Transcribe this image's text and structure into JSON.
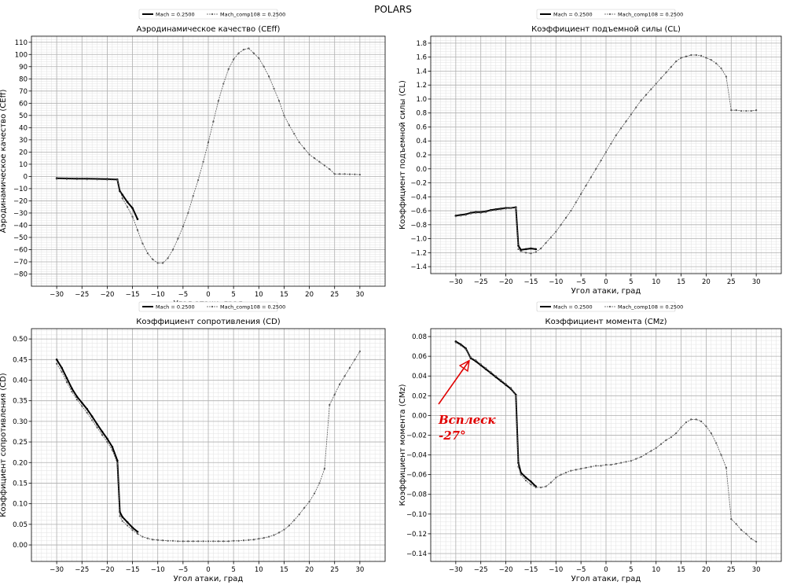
{
  "figure": {
    "suptitle": "POLARS",
    "colors": {
      "major_grid": "#b0b0b0",
      "minor_grid": "#e2e2e2",
      "series_main": "#000000",
      "series_comp": "#555555",
      "annotation": "#e00000"
    }
  },
  "chart_data": [
    {
      "type": "line",
      "title": "Аэродинамическое качество (CEff)",
      "xlabel": "Угол атаки, град",
      "ylabel": "Аэродинамическое качество (CEff)",
      "xlim": [
        -35,
        35
      ],
      "ylim": [
        -90,
        115
      ],
      "xticks": [
        -30,
        -25,
        -20,
        -15,
        -10,
        -5,
        0,
        5,
        10,
        15,
        20,
        25,
        30
      ],
      "yticks": [
        -80,
        -70,
        -60,
        -50,
        -40,
        -30,
        -20,
        -10,
        0,
        10,
        20,
        30,
        40,
        50,
        60,
        70,
        80,
        90,
        100,
        110
      ],
      "grid": true,
      "legend_position": "top-center",
      "series": [
        {
          "name": "Mach = 0.2500",
          "style": "thick",
          "x": [
            -30,
            -28,
            -26,
            -24,
            -22,
            -20,
            -18,
            -17.5,
            -17,
            -16,
            -15,
            -14
          ],
          "y": [
            -1.5,
            -1.7,
            -1.8,
            -1.9,
            -2,
            -2.2,
            -2.5,
            -12,
            -15,
            -21,
            -26,
            -35
          ]
        },
        {
          "name": "Mach_comp108 = 0.2500",
          "style": "thin",
          "x": [
            -30,
            -28,
            -26,
            -24,
            -22,
            -20,
            -18,
            -17,
            -16,
            -15,
            -14,
            -13,
            -12,
            -11,
            -10,
            -9,
            -8,
            -7,
            -6,
            -5,
            -4,
            -3,
            -2,
            -1,
            0,
            1,
            2,
            3,
            4,
            5,
            6,
            7,
            8,
            9,
            10,
            11,
            12,
            13,
            14,
            15,
            16,
            17,
            18,
            19,
            20,
            21,
            22,
            23,
            24,
            25,
            26,
            27,
            28,
            29,
            30
          ],
          "y": [
            -2,
            -2.2,
            -2.3,
            -2.4,
            -2.5,
            -2.7,
            -3,
            -18,
            -25,
            -33,
            -44,
            -55,
            -63,
            -68,
            -71,
            -71,
            -67,
            -60,
            -51,
            -41,
            -30,
            -16,
            -3,
            12,
            28,
            45,
            62,
            76,
            88,
            96,
            101,
            104,
            105,
            101,
            97,
            90,
            82,
            72,
            62,
            50,
            42,
            35,
            28,
            23,
            18,
            15,
            12,
            9,
            6,
            2,
            2,
            2,
            1.8,
            1.7,
            1.5
          ]
        }
      ]
    },
    {
      "type": "line",
      "title": "Коэффициент подъемной силы (CL)",
      "xlabel": "Угол атаки, град",
      "ylabel": "Коэффициент подъемной силы (CL)",
      "xlim": [
        -35,
        35
      ],
      "ylim": [
        -1.5,
        1.9
      ],
      "xticks": [
        -30,
        -25,
        -20,
        -15,
        -10,
        -5,
        0,
        5,
        10,
        15,
        20,
        25,
        30
      ],
      "yticks": [
        -1.4,
        -1.2,
        -1.0,
        -0.8,
        -0.6,
        -0.4,
        -0.2,
        0.0,
        0.2,
        0.4,
        0.6,
        0.8,
        1.0,
        1.2,
        1.4,
        1.6,
        1.8
      ],
      "grid": true,
      "legend_position": "top-center",
      "series": [
        {
          "name": "Mach = 0.2500",
          "style": "thick",
          "x": [
            -30,
            -29,
            -28,
            -27,
            -26,
            -25,
            -24,
            -23,
            -22,
            -21,
            -20,
            -19,
            -18,
            -17.5,
            -17,
            -16,
            -15,
            -14
          ],
          "y": [
            -0.67,
            -0.66,
            -0.65,
            -0.63,
            -0.62,
            -0.62,
            -0.61,
            -0.59,
            -0.58,
            -0.57,
            -0.56,
            -0.56,
            -0.55,
            -1.1,
            -1.16,
            -1.15,
            -1.14,
            -1.15
          ]
        },
        {
          "name": "Mach_comp108 = 0.2500",
          "style": "thin",
          "x": [
            -30,
            -29,
            -28,
            -27,
            -26,
            -25,
            -24,
            -23,
            -22,
            -21,
            -20,
            -19,
            -18,
            -17.5,
            -17,
            -16,
            -15,
            -14,
            -13,
            -12,
            -11,
            -10,
            -9,
            -8,
            -7,
            -6,
            -5,
            -4,
            -3,
            -2,
            -1,
            0,
            1,
            2,
            3,
            4,
            5,
            6,
            7,
            8,
            9,
            10,
            11,
            12,
            13,
            14,
            15,
            16,
            17,
            18,
            19,
            20,
            21,
            22,
            23,
            24,
            25,
            26,
            27,
            28,
            29,
            30
          ],
          "y": [
            -0.68,
            -0.67,
            -0.66,
            -0.64,
            -0.63,
            -0.63,
            -0.62,
            -0.6,
            -0.59,
            -0.58,
            -0.57,
            -0.56,
            -0.56,
            -1.15,
            -1.18,
            -1.2,
            -1.21,
            -1.19,
            -1.14,
            -1.06,
            -0.98,
            -0.9,
            -0.8,
            -0.7,
            -0.6,
            -0.48,
            -0.36,
            -0.24,
            -0.12,
            -0.0,
            0.12,
            0.24,
            0.36,
            0.48,
            0.58,
            0.68,
            0.78,
            0.88,
            0.98,
            1.06,
            1.14,
            1.22,
            1.3,
            1.38,
            1.46,
            1.54,
            1.59,
            1.61,
            1.63,
            1.63,
            1.62,
            1.59,
            1.56,
            1.51,
            1.44,
            1.32,
            0.84,
            0.84,
            0.83,
            0.83,
            0.83,
            0.84
          ]
        }
      ]
    },
    {
      "type": "line",
      "title": "Коэффициент сопротивления (CD)",
      "xlabel": "Угол атаки, град",
      "ylabel": "Коэффициент сопротивления (CD)",
      "xlim": [
        -35,
        35
      ],
      "ylim": [
        -0.04,
        0.525
      ],
      "xticks": [
        -30,
        -25,
        -20,
        -15,
        -10,
        -5,
        0,
        5,
        10,
        15,
        20,
        25,
        30
      ],
      "yticks": [
        0.0,
        0.05,
        0.1,
        0.15,
        0.2,
        0.25,
        0.3,
        0.35,
        0.4,
        0.45,
        0.5
      ],
      "grid": true,
      "legend_position": "top-center",
      "series": [
        {
          "name": "Mach = 0.2500",
          "style": "thick",
          "x": [
            -30,
            -29,
            -28,
            -27,
            -26,
            -25,
            -24,
            -23,
            -22,
            -21,
            -20,
            -19,
            -18,
            -17.5,
            -17,
            -16,
            -15,
            -14
          ],
          "y": [
            0.45,
            0.43,
            0.405,
            0.38,
            0.36,
            0.345,
            0.33,
            0.312,
            0.293,
            0.275,
            0.258,
            0.238,
            0.205,
            0.08,
            0.068,
            0.055,
            0.042,
            0.032
          ]
        },
        {
          "name": "Mach_comp108 = 0.2500",
          "style": "thin",
          "x": [
            -30,
            -29,
            -28,
            -27,
            -26,
            -25,
            -24,
            -23,
            -22,
            -21,
            -20,
            -19,
            -18,
            -17.5,
            -17,
            -16,
            -15,
            -14,
            -13,
            -12,
            -11,
            -10,
            -9,
            -8,
            -7,
            -6,
            -5,
            -4,
            -3,
            -2,
            -1,
            0,
            1,
            2,
            3,
            4,
            5,
            6,
            7,
            8,
            9,
            10,
            11,
            12,
            13,
            14,
            15,
            16,
            17,
            18,
            19,
            20,
            21,
            22,
            23,
            24,
            25,
            26,
            27,
            28,
            29,
            30
          ],
          "y": [
            0.44,
            0.42,
            0.395,
            0.372,
            0.353,
            0.337,
            0.321,
            0.303,
            0.285,
            0.267,
            0.25,
            0.23,
            0.198,
            0.07,
            0.058,
            0.047,
            0.036,
            0.027,
            0.02,
            0.016,
            0.013,
            0.012,
            0.011,
            0.01,
            0.01,
            0.009,
            0.009,
            0.009,
            0.009,
            0.009,
            0.009,
            0.009,
            0.009,
            0.009,
            0.009,
            0.009,
            0.01,
            0.01,
            0.011,
            0.012,
            0.013,
            0.015,
            0.017,
            0.02,
            0.024,
            0.03,
            0.037,
            0.047,
            0.06,
            0.074,
            0.09,
            0.105,
            0.125,
            0.15,
            0.185,
            0.34,
            0.365,
            0.39,
            0.41,
            0.43,
            0.45,
            0.47
          ]
        }
      ]
    },
    {
      "type": "line",
      "title": "Коэффициент момента (CMz)",
      "xlabel": "Угол атаки, град",
      "ylabel": "Коэффициент момента (CMz)",
      "xlim": [
        -35,
        35
      ],
      "ylim": [
        -0.148,
        0.088
      ],
      "xticks": [
        -30,
        -25,
        -20,
        -15,
        -10,
        -5,
        0,
        5,
        10,
        15,
        20,
        25,
        30
      ],
      "yticks": [
        -0.14,
        -0.12,
        -0.1,
        -0.08,
        -0.06,
        -0.04,
        -0.02,
        0.0,
        0.02,
        0.04,
        0.06,
        0.08
      ],
      "grid": true,
      "legend_position": "top-center",
      "annotation": {
        "text_lines": [
          "Всплеск",
          "-27°"
        ],
        "target_x": -27,
        "target_y": 0.058
      },
      "series": [
        {
          "name": "Mach = 0.2500",
          "style": "thick",
          "x": [
            -30,
            -29,
            -28,
            -27,
            -26,
            -25,
            -24,
            -23,
            -22,
            -21,
            -20,
            -19,
            -18,
            -17.5,
            -17,
            -16,
            -15,
            -14
          ],
          "y": [
            0.075,
            0.072,
            0.068,
            0.058,
            0.055,
            0.051,
            0.047,
            0.043,
            0.039,
            0.035,
            0.031,
            0.027,
            0.021,
            -0.048,
            -0.058,
            -0.063,
            -0.067,
            -0.072
          ]
        },
        {
          "name": "Mach_comp108 = 0.2500",
          "style": "thin",
          "x": [
            -30,
            -29,
            -28,
            -27,
            -26,
            -25,
            -24,
            -23,
            -22,
            -21,
            -20,
            -19,
            -18,
            -17.5,
            -17,
            -16,
            -15,
            -14,
            -13,
            -12,
            -11,
            -10,
            -9,
            -8,
            -7,
            -6,
            -5,
            -4,
            -3,
            -2,
            -1,
            0,
            1,
            2,
            3,
            4,
            5,
            6,
            7,
            8,
            9,
            10,
            11,
            12,
            13,
            14,
            15,
            16,
            17,
            18,
            19,
            20,
            21,
            22,
            23,
            24,
            25,
            26,
            27,
            28,
            29,
            30
          ],
          "y": [
            0.074,
            0.071,
            0.067,
            0.059,
            0.056,
            0.052,
            0.048,
            0.044,
            0.04,
            0.036,
            0.032,
            0.028,
            0.02,
            -0.052,
            -0.06,
            -0.066,
            -0.07,
            -0.073,
            -0.073,
            -0.072,
            -0.068,
            -0.063,
            -0.06,
            -0.058,
            -0.056,
            -0.055,
            -0.054,
            -0.053,
            -0.052,
            -0.051,
            -0.051,
            -0.05,
            -0.05,
            -0.049,
            -0.048,
            -0.047,
            -0.046,
            -0.044,
            -0.042,
            -0.039,
            -0.036,
            -0.033,
            -0.029,
            -0.025,
            -0.022,
            -0.018,
            -0.012,
            -0.007,
            -0.004,
            -0.004,
            -0.006,
            -0.011,
            -0.018,
            -0.028,
            -0.04,
            -0.053,
            -0.105,
            -0.11,
            -0.116,
            -0.12,
            -0.125,
            -0.128
          ]
        }
      ]
    }
  ]
}
